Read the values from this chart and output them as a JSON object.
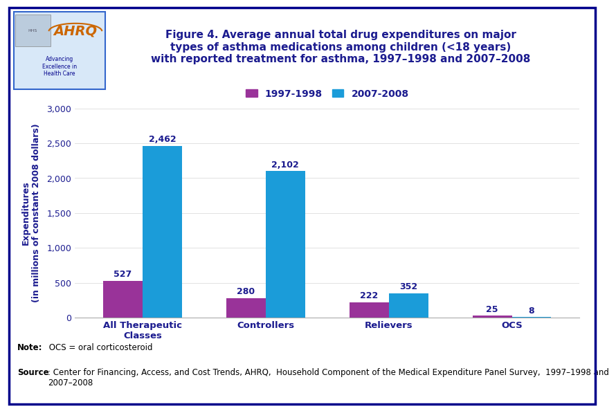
{
  "title": "Figure 4. Average annual total drug expenditures on major\ntypes of asthma medications among children (<18 years)\nwith reported treatment for asthma, 1997–1998 and 2007–2008",
  "categories": [
    "All Therapeutic\nClasses",
    "Controllers",
    "Relievers",
    "OCS"
  ],
  "series_1997": [
    527,
    280,
    222,
    25
  ],
  "series_2007": [
    2462,
    2102,
    352,
    8
  ],
  "color_1997": "#993399",
  "color_2007": "#1B9CD9",
  "legend_1997": "1997-1998",
  "legend_2007": "2007-2008",
  "ylabel": "Expenditures\n(in millions of constant 2008 dollars)",
  "ylim": [
    0,
    3000
  ],
  "yticks": [
    0,
    500,
    1000,
    1500,
    2000,
    2500,
    3000
  ],
  "bar_width": 0.32,
  "note_bold": "Note:",
  "note_rest": " OCS = oral corticosteroid",
  "source_bold": "Source",
  "source_rest": ": Center for Financing, Access, and Cost Trends, AHRQ,  Household Component of the Medical Expenditure Panel Survey,  1997–1998 and\n2007–2008",
  "title_color": "#1B1B8F",
  "axis_label_color": "#1B1B8F",
  "tick_label_color": "#1B1B8F",
  "bar_value_color": "#1B1B8F",
  "legend_color": "#1B1B8F",
  "background_color": "#FFFFFF",
  "separator_color": "#00008B",
  "outer_border_color": "#00008B",
  "logo_border_color": "#3366CC",
  "logo_bg_color": "#D8E8F8",
  "ahrq_color": "#CC6600",
  "hhs_text_color": "#00008B"
}
